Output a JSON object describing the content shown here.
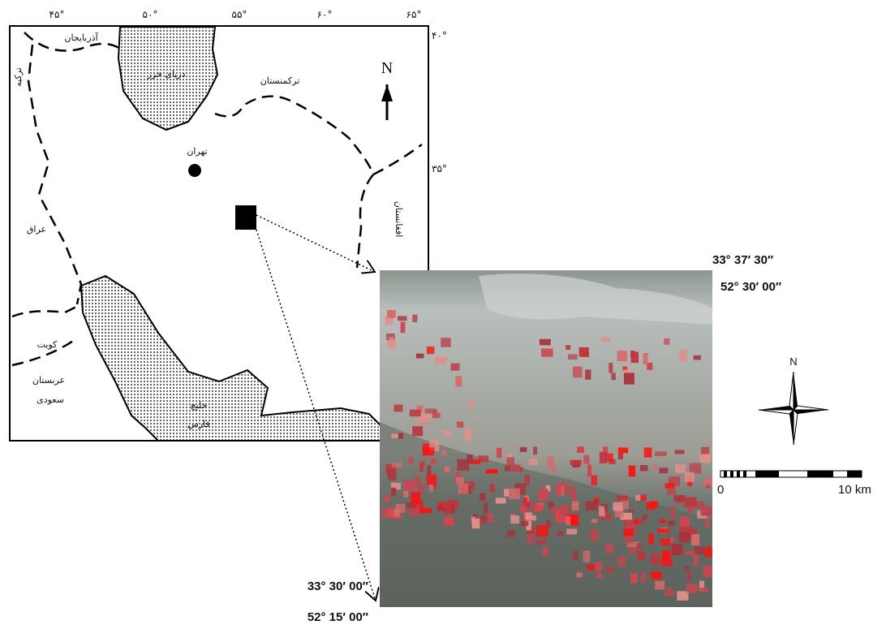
{
  "map": {
    "longitude_labels": [
      "۴۵°",
      "۵۰°",
      "۵۵°",
      "۶۰°",
      "۶۵°"
    ],
    "latitude_labels": [
      "۴۰°",
      "۳۵°"
    ],
    "north_label": "N",
    "places": {
      "azerbaijan": "آذربایجان",
      "turkey": "ترکیه",
      "caspian_sea": "دریای خزر",
      "turkmenistan": "ترکمنستان",
      "tehran": "تهران",
      "iraq": "عراق",
      "afghanistan": "افغانستان",
      "kuwait": "کویت",
      "saudi_arabia_1": "عربستان",
      "saudi_arabia_2": "سعودی",
      "persian_gulf_1": "خلیج",
      "persian_gulf_2": "فارس"
    }
  },
  "image": {
    "top_right": {
      "lat": "33° 37′ 30″",
      "lon": "52° 30′ 00″"
    },
    "bottom_left": {
      "lat": "33° 30′ 00″",
      "lon": "52° 15′ 00″"
    },
    "compass_label": "N",
    "scale_start": "0",
    "scale_end": "10 km"
  }
}
